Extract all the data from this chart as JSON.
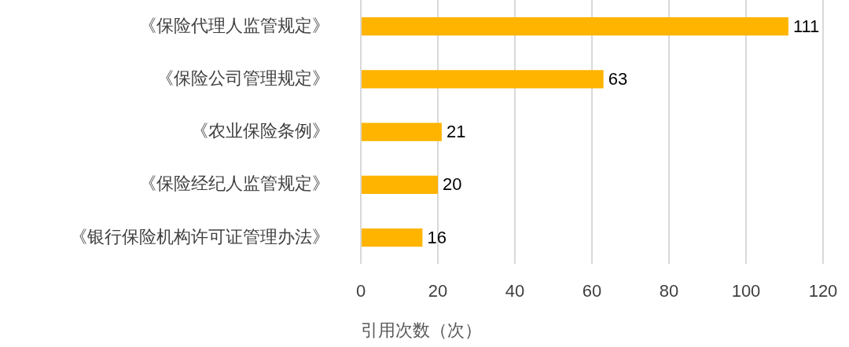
{
  "chart_data": {
    "type": "bar",
    "orientation": "horizontal",
    "categories": [
      "《保险代理人监管规定》",
      "《保险公司管理规定》",
      "《农业保险条例》",
      "《保险经纪人监管规定》",
      "《银行保险机构许可证管理办法》"
    ],
    "values": [
      111,
      63,
      21,
      20,
      16
    ],
    "color": "#ffb400",
    "xlabel": "引用次数（次）",
    "xlim": [
      0,
      120
    ],
    "xticks": [
      0,
      20,
      40,
      60,
      80,
      100,
      120
    ],
    "grid": "x",
    "data_labels": true
  }
}
